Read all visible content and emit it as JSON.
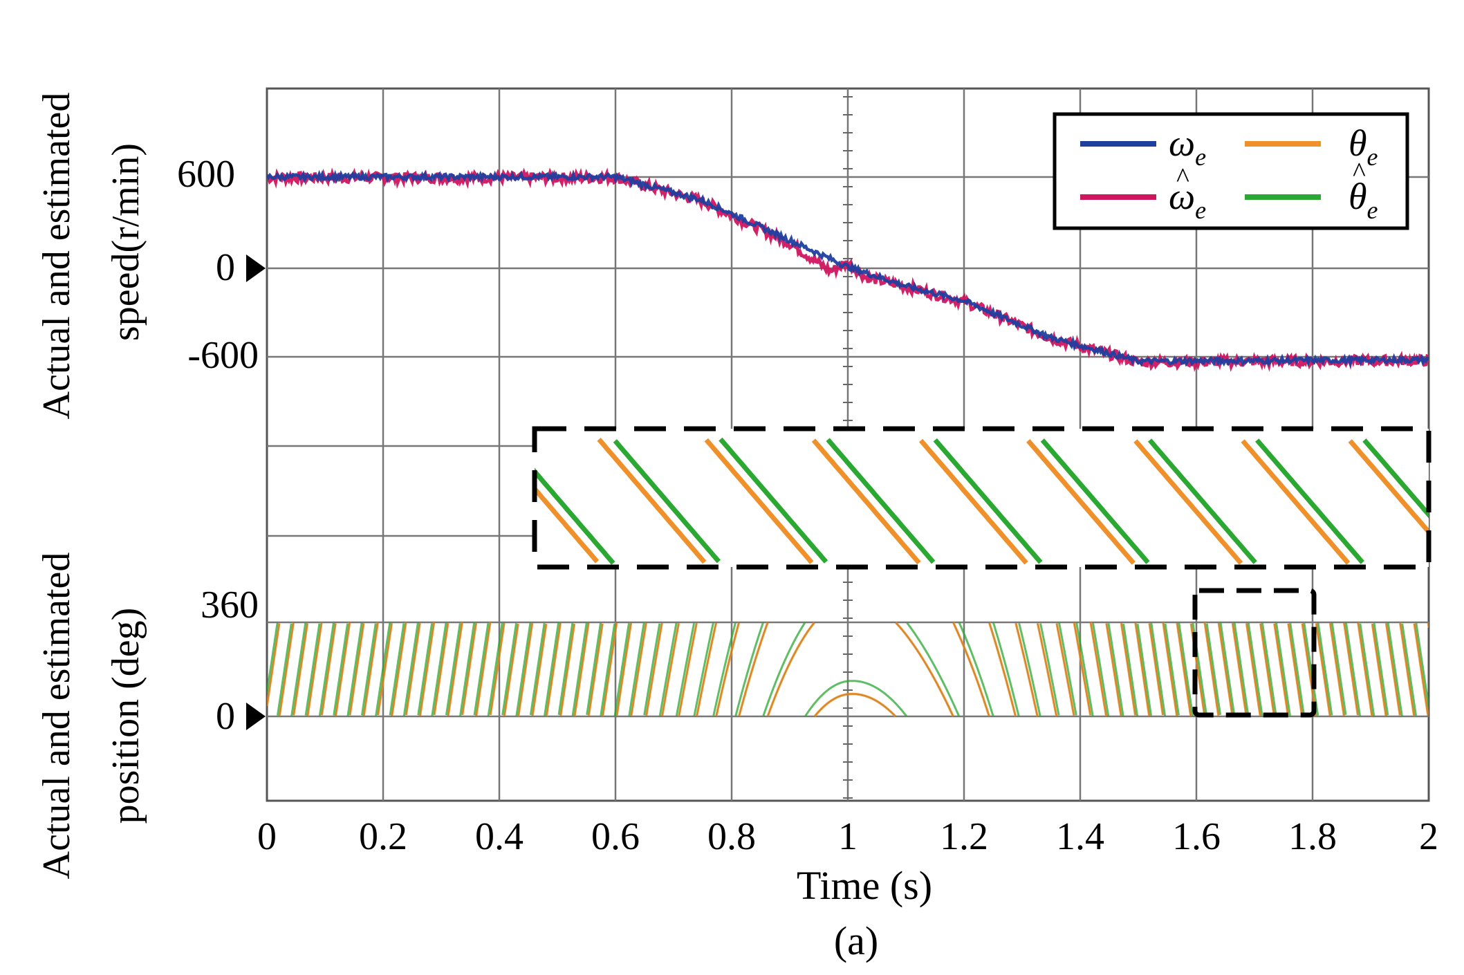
{
  "chart_data": {
    "type": "line",
    "caption": "(a)",
    "xlabel": "Time (s)",
    "xlim": [
      0,
      2
    ],
    "x_ticks": [
      "0",
      "0.2",
      "0.4",
      "0.6",
      "0.8",
      "1",
      "1.2",
      "1.4",
      "1.6",
      "1.8",
      "2"
    ],
    "speed_panel": {
      "ylabel_line1": "Actual and estimated",
      "ylabel_line2": "speed(r/min)",
      "ylim": [
        -1200,
        1200
      ],
      "y_ticks": [
        "600",
        "0",
        "-600"
      ],
      "series": [
        {
          "name": "ωe",
          "color": "#1f3f9f",
          "x": [
            0,
            0.6,
            0.75,
            0.9,
            1.0,
            1.1,
            1.2,
            1.35,
            1.5,
            2.0
          ],
          "values": [
            620,
            620,
            460,
            190,
            10,
            -120,
            -220,
            -470,
            -630,
            -620
          ]
        },
        {
          "name": "ω̂e",
          "color": "#d0155f",
          "x": [
            0,
            0.6,
            0.75,
            0.9,
            0.97,
            1.0,
            1.03,
            1.1,
            1.2,
            1.35,
            1.5,
            2.0
          ],
          "values": [
            615,
            615,
            455,
            170,
            -20,
            40,
            -60,
            -125,
            -225,
            -475,
            -635,
            -625
          ]
        }
      ]
    },
    "position_panel": {
      "ylabel_line1": "Actual and estimated",
      "ylabel_line2": "position (deg)",
      "y_ticks": [
        "360",
        "0"
      ],
      "series": [
        {
          "name": "θe",
          "color": "#f0902a"
        },
        {
          "name": "θ̂e",
          "color": "#2aa832"
        }
      ]
    },
    "legend": {
      "position": "top-right",
      "entries": [
        {
          "symbol": "ω",
          "sub": "e",
          "hat": false,
          "color": "#1f3f9f"
        },
        {
          "symbol": "θ",
          "sub": "e",
          "hat": false,
          "color": "#f0902a"
        },
        {
          "symbol": "ω",
          "sub": "e",
          "hat": true,
          "color": "#d0155f"
        },
        {
          "symbol": "θ",
          "sub": "e",
          "hat": true,
          "color": "#2aa832"
        }
      ]
    }
  }
}
